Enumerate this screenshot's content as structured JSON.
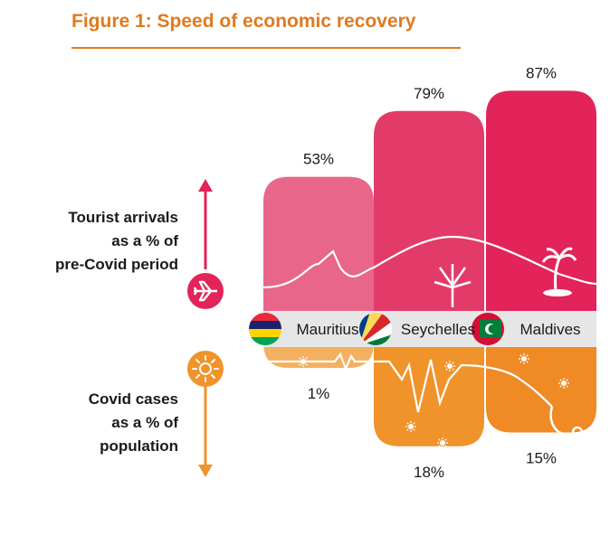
{
  "title": "Figure 1: Speed of economic recovery",
  "labels": {
    "arrivals": [
      "Tourist arrivals",
      "as a % of",
      "pre-Covid period"
    ],
    "covid": [
      "Covid cases",
      "as a % of",
      "population"
    ]
  },
  "icons": {
    "arrivals": "airplane-icon",
    "covid": "virus-icon"
  },
  "colors": {
    "accent": "#E07A1F",
    "pink": "#E2245A",
    "orange": "#F0932B",
    "bar_pink": [
      "#E8668A",
      "#E23B6A",
      "#E2245A"
    ],
    "bar_orange": [
      "#F3B060",
      "#F0932B",
      "#EF8A25"
    ]
  },
  "chart_data": {
    "type": "bar",
    "title": "Figure 1: Speed of economic recovery",
    "categories": [
      "Mauritius",
      "Seychelles",
      "Maldives"
    ],
    "series": [
      {
        "name": "Tourist arrivals as a % of pre-Covid period",
        "values": [
          53,
          79,
          87
        ],
        "labels": [
          "53%",
          "79%",
          "87%"
        ]
      },
      {
        "name": "Covid cases as a % of population",
        "values": [
          1,
          18,
          15
        ],
        "labels": [
          "1%",
          "18%",
          "15%"
        ]
      }
    ],
    "ylim": [
      0,
      100
    ]
  }
}
